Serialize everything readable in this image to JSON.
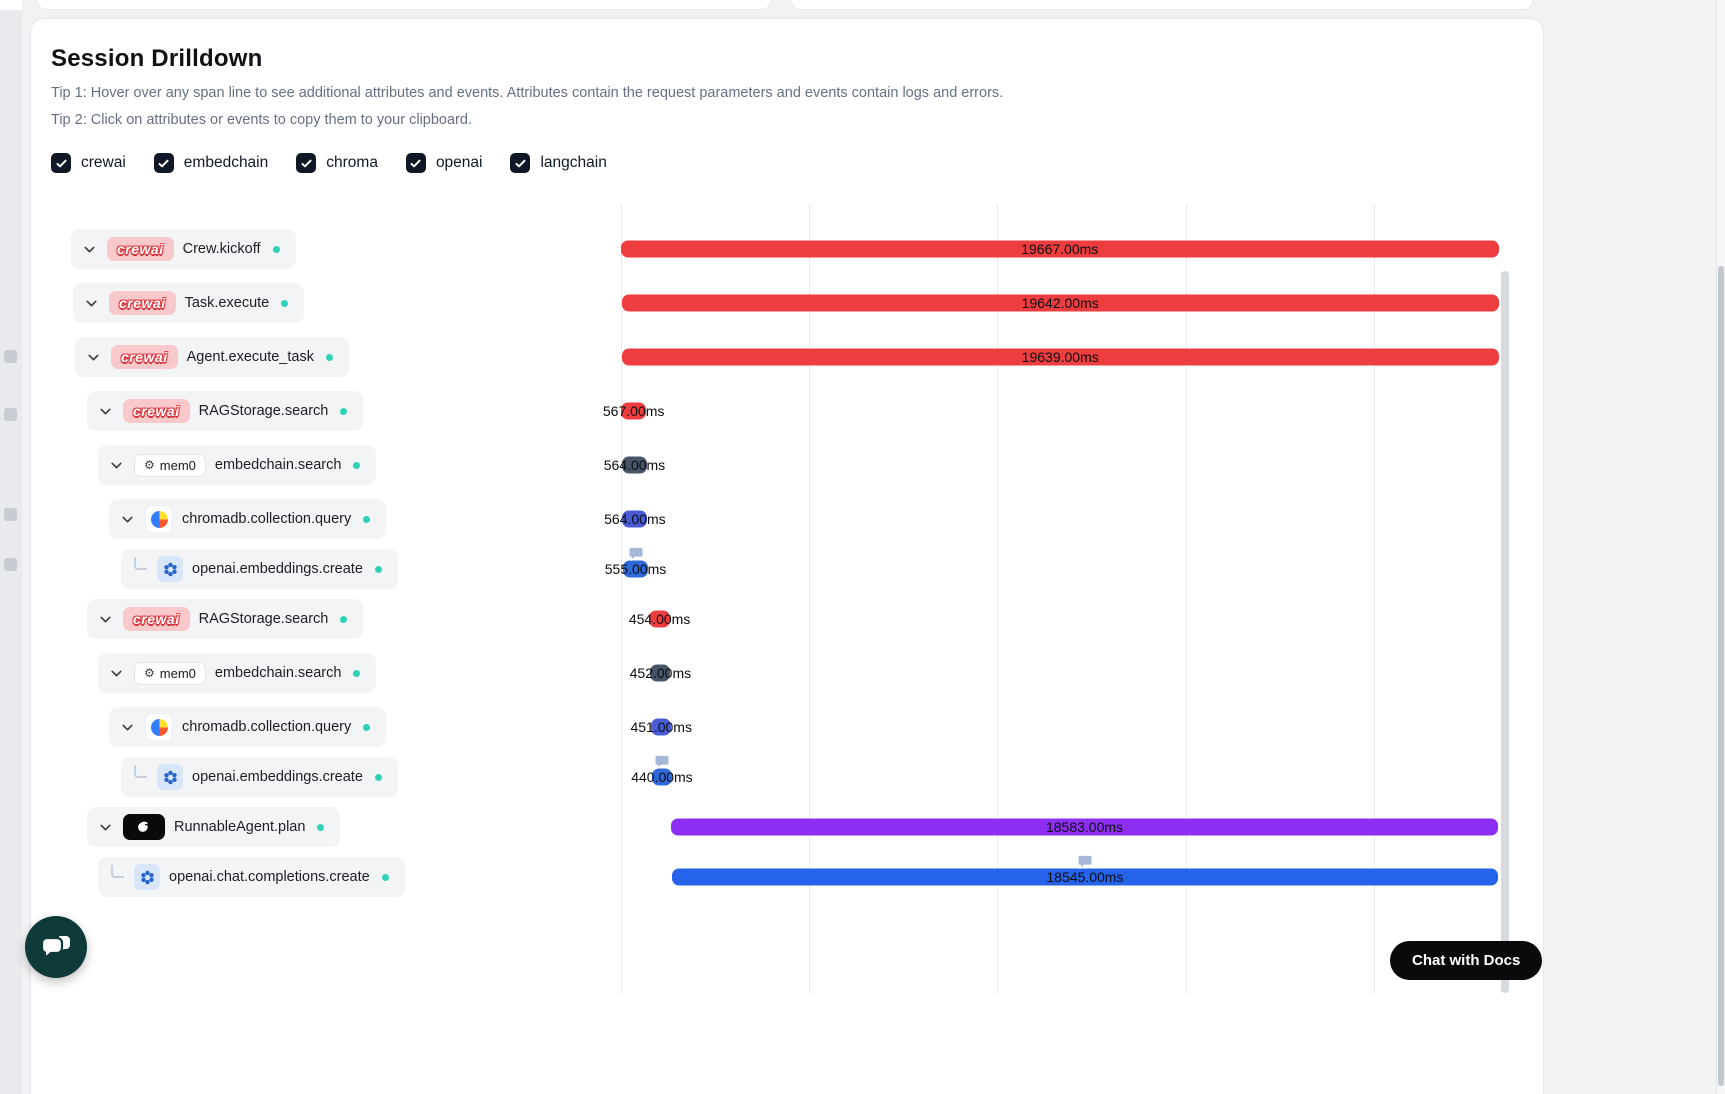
{
  "header": {
    "title": "Session Drilldown",
    "tip1": "Tip 1: Hover over any span line to see additional attributes and events. Attributes contain the request parameters and events contain logs and errors.",
    "tip2": "Tip 2: Click on attributes or events to copy them to your clipboard."
  },
  "filters": [
    {
      "label": "crewai",
      "checked": true
    },
    {
      "label": "embedchain",
      "checked": true
    },
    {
      "label": "chroma",
      "checked": true
    },
    {
      "label": "openai",
      "checked": true
    },
    {
      "label": "langchain",
      "checked": true
    }
  ],
  "vendors": {
    "crewai": {
      "label": "crewai"
    },
    "mem0": {
      "label": "mem0"
    },
    "chroma": {
      "label": ""
    },
    "openai": {
      "label": ""
    },
    "langchain": {
      "label": ""
    }
  },
  "colors": {
    "crewai_red": "#ee3d3f",
    "embedchain_slate": "#475569",
    "chroma_indigo": "#4a5bd4",
    "openai_blue": "#2e6adb",
    "openai_bright_blue": "#2563eb",
    "langchain_purple": "#8d2ff2",
    "status_dot_teal": "#2ed3b7"
  },
  "timeline": {
    "gridlines_pct": [
      0,
      21.1,
      42.2,
      63.5,
      84.6
    ]
  },
  "spans": [
    {
      "name": "Crew.kickoff",
      "vendor": "crewai",
      "duration": "19667.00ms",
      "depth": 0,
      "connector": "chevron",
      "bubble": false,
      "bar": {
        "left_pct": 0,
        "width_pct": 98.6,
        "color": "#ee3d3f"
      }
    },
    {
      "name": "Task.execute",
      "vendor": "crewai",
      "duration": "19642.00ms",
      "depth": 1,
      "connector": "chevron",
      "bubble": false,
      "bar": {
        "left_pct": 0.1,
        "width_pct": 98.5,
        "color": "#ee3d3f"
      }
    },
    {
      "name": "Agent.execute_task",
      "vendor": "crewai",
      "duration": "19639.00ms",
      "depth": 2,
      "connector": "chevron",
      "bubble": false,
      "bar": {
        "left_pct": 0.1,
        "width_pct": 98.5,
        "color": "#ee3d3f"
      }
    },
    {
      "name": "RAGStorage.search",
      "vendor": "crewai",
      "duration": "567.00ms",
      "depth": 3,
      "connector": "chevron",
      "bubble": false,
      "bar": {
        "left_pct": 0,
        "width_pct": 2.84,
        "color": "#ee3d3f"
      }
    },
    {
      "name": "embedchain.search",
      "vendor": "mem0",
      "duration": "564.00ms",
      "depth": 4,
      "connector": "chevron",
      "bubble": false,
      "bar": {
        "left_pct": 0.1,
        "width_pct": 2.82,
        "color": "#475569"
      }
    },
    {
      "name": "chromadb.collection.query",
      "vendor": "chroma",
      "duration": "564.00ms",
      "depth": 5,
      "connector": "chevron",
      "bubble": false,
      "bar": {
        "left_pct": 0.15,
        "width_pct": 2.82,
        "color": "#4a5bd4"
      }
    },
    {
      "name": "openai.embeddings.create",
      "vendor": "openai",
      "duration": "555.00ms",
      "depth": 6,
      "connector": "elbow",
      "bubble": true,
      "bar": {
        "left_pct": 0.25,
        "width_pct": 2.76,
        "color": "#2e6adb"
      }
    },
    {
      "name": "RAGStorage.search",
      "vendor": "crewai",
      "duration": "454.00ms",
      "depth": 3,
      "connector": "chevron",
      "bubble": false,
      "bar": {
        "left_pct": 3.2,
        "width_pct": 2.27,
        "color": "#ee3d3f"
      }
    },
    {
      "name": "embedchain.search",
      "vendor": "mem0",
      "duration": "452.00ms",
      "depth": 4,
      "connector": "chevron",
      "bubble": false,
      "bar": {
        "left_pct": 3.3,
        "width_pct": 2.25,
        "color": "#475569"
      }
    },
    {
      "name": "chromadb.collection.query",
      "vendor": "chroma",
      "duration": "451.00ms",
      "depth": 5,
      "connector": "chevron",
      "bubble": false,
      "bar": {
        "left_pct": 3.4,
        "width_pct": 2.24,
        "color": "#4a5bd4"
      }
    },
    {
      "name": "openai.embeddings.create",
      "vendor": "openai",
      "duration": "440.00ms",
      "depth": 6,
      "connector": "elbow",
      "bubble": true,
      "bar": {
        "left_pct": 3.5,
        "width_pct": 2.2,
        "color": "#2e6adb"
      }
    },
    {
      "name": "RunnableAgent.plan",
      "vendor": "langchain",
      "duration": "18583.00ms",
      "depth": 3,
      "connector": "chevron",
      "bubble": false,
      "bar": {
        "left_pct": 5.63,
        "width_pct": 92.9,
        "color": "#8d2ff2"
      }
    },
    {
      "name": "openai.chat.completions.create",
      "vendor": "openai",
      "duration": "18545.00ms",
      "depth": 4,
      "connector": "elbow",
      "bubble": true,
      "bar": {
        "left_pct": 5.75,
        "width_pct": 92.75,
        "color": "#2563eb"
      }
    }
  ],
  "chat_widget": {
    "docs_button": "Chat with Docs"
  }
}
